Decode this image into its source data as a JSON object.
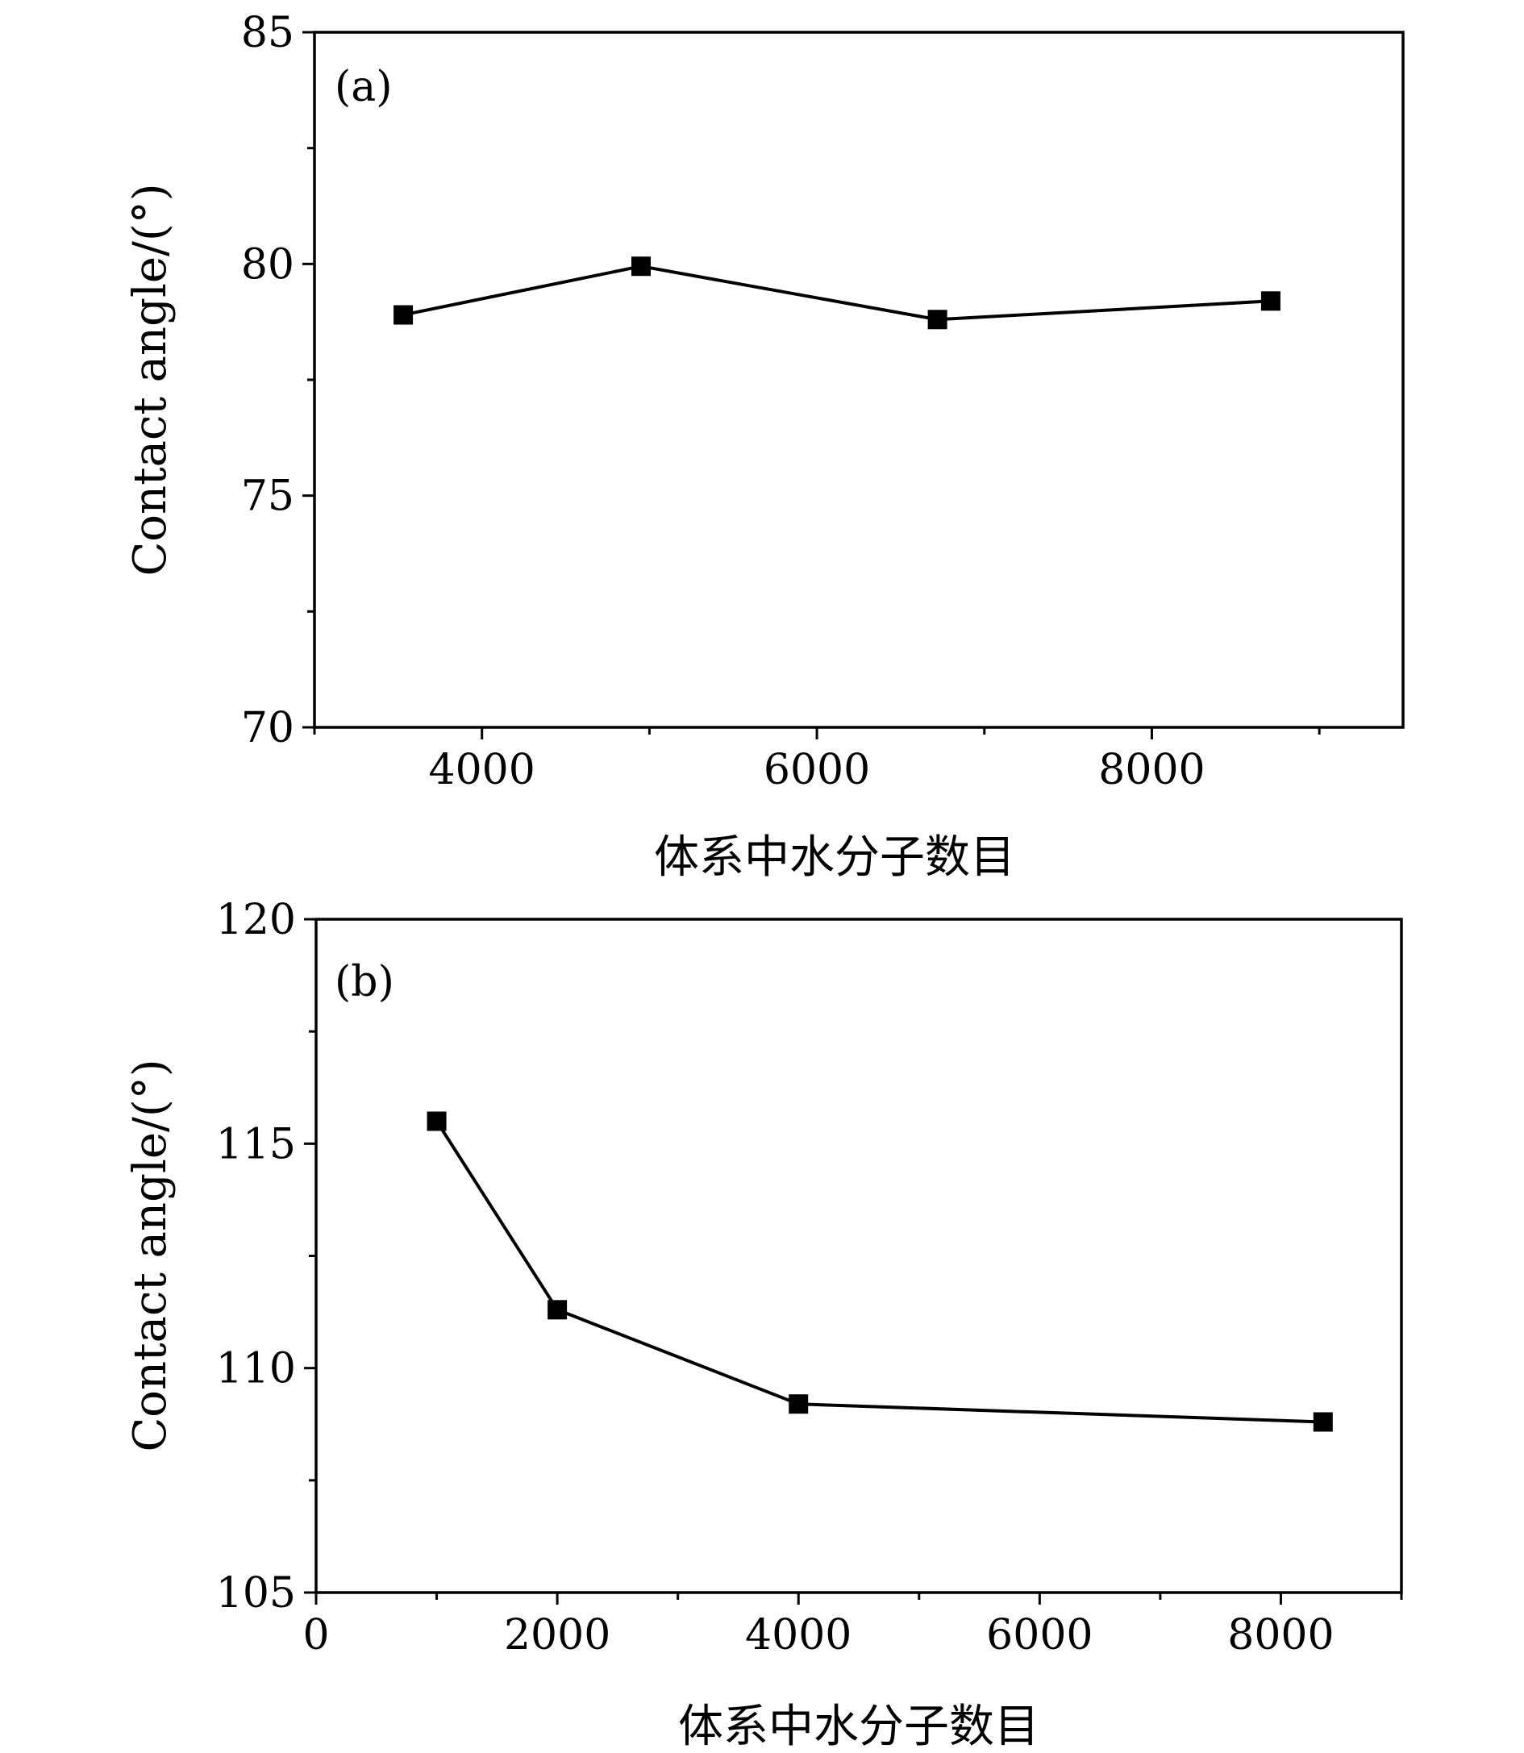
{
  "chart_data": [
    {
      "type": "line",
      "panel_label": "(a)",
      "xlabel": "体系中水分子数目",
      "ylabel": "Contact angle/(°)",
      "xlim": [
        3000,
        9500
      ],
      "ylim": [
        70,
        85
      ],
      "x_ticks": [
        4000,
        6000,
        8000
      ],
      "x_minor_ticks": [
        3000,
        5000,
        7000,
        9000
      ],
      "y_ticks": [
        70,
        75,
        80,
        85
      ],
      "y_minor_ticks": [
        72.5,
        77.5,
        82.5
      ],
      "grid": false,
      "series": [
        {
          "x": [
            3530,
            4950,
            6720,
            8710
          ],
          "y": [
            78.9,
            79.95,
            78.8,
            79.2
          ]
        }
      ]
    },
    {
      "type": "line",
      "panel_label": "(b)",
      "xlabel": "体系中水分子数目",
      "ylabel": "Contact angle/(°)",
      "xlim": [
        0,
        9000
      ],
      "ylim": [
        105,
        120
      ],
      "x_ticks": [
        0,
        2000,
        4000,
        6000,
        8000
      ],
      "x_minor_ticks": [
        1000,
        3000,
        5000,
        7000,
        9000
      ],
      "y_ticks": [
        105,
        110,
        115,
        120
      ],
      "y_minor_ticks": [
        107.5,
        112.5,
        117.5
      ],
      "grid": false,
      "series": [
        {
          "x": [
            1000,
            2000,
            4000,
            8350
          ],
          "y": [
            115.5,
            111.3,
            109.2,
            108.8
          ]
        }
      ]
    }
  ]
}
